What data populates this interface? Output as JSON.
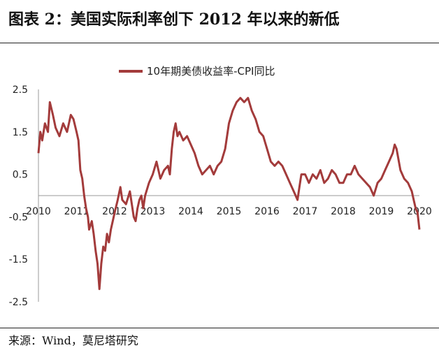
{
  "figure": {
    "title": "图表 2：美国实际利率创下 2012 年以来的新低",
    "source": "来源：Wind，莫尼塔研究"
  },
  "chart_data": {
    "type": "line",
    "title": "",
    "xlabel": "",
    "ylabel": "",
    "xlim": [
      2010,
      2020
    ],
    "ylim": [
      -2.5,
      2.5
    ],
    "xticks": [
      "2010",
      "2011",
      "2012",
      "2013",
      "2014",
      "2015",
      "2016",
      "2017",
      "2018",
      "2019",
      "2020"
    ],
    "yticks": [
      "2.5",
      "1.5",
      "0.5",
      "-0.5",
      "-1.5",
      "-2.5"
    ],
    "ytick_values": [
      2.5,
      1.5,
      0.5,
      -0.5,
      -1.5,
      -2.5
    ],
    "grid": false,
    "legend_position": "top-center",
    "series": [
      {
        "name": "10年期美债收益率-CPI同比",
        "color": "#a33b3b",
        "x": [
          2010.0,
          2010.05,
          2010.1,
          2010.17,
          2010.25,
          2010.3,
          2010.38,
          2010.45,
          2010.55,
          2010.65,
          2010.75,
          2010.85,
          2010.92,
          2011.0,
          2011.05,
          2011.1,
          2011.15,
          2011.2,
          2011.25,
          2011.3,
          2011.33,
          2011.4,
          2011.45,
          2011.5,
          2011.55,
          2011.6,
          2011.65,
          2011.7,
          2011.75,
          2011.8,
          2011.85,
          2011.9,
          2011.95,
          2012.0,
          2012.08,
          2012.15,
          2012.2,
          2012.3,
          2012.4,
          2012.5,
          2012.55,
          2012.6,
          2012.65,
          2012.7,
          2012.75,
          2012.8,
          2012.9,
          2013.0,
          2013.1,
          2013.2,
          2013.3,
          2013.4,
          2013.45,
          2013.5,
          2013.55,
          2013.6,
          2013.65,
          2013.7,
          2013.8,
          2013.9,
          2014.0,
          2014.1,
          2014.2,
          2014.3,
          2014.4,
          2014.5,
          2014.6,
          2014.7,
          2014.8,
          2014.9,
          2015.0,
          2015.1,
          2015.2,
          2015.3,
          2015.4,
          2015.5,
          2015.6,
          2015.7,
          2015.8,
          2015.9,
          2016.0,
          2016.1,
          2016.2,
          2016.3,
          2016.4,
          2016.5,
          2016.6,
          2016.7,
          2016.75,
          2016.8,
          2016.85,
          2016.9,
          2017.0,
          2017.1,
          2017.2,
          2017.3,
          2017.4,
          2017.5,
          2017.6,
          2017.7,
          2017.8,
          2017.9,
          2018.0,
          2018.1,
          2018.2,
          2018.3,
          2018.4,
          2018.5,
          2018.6,
          2018.7,
          2018.8,
          2018.9,
          2019.0,
          2019.1,
          2019.2,
          2019.3,
          2019.35,
          2019.4,
          2019.5,
          2019.6,
          2019.7,
          2019.8,
          2019.85,
          2019.9,
          2019.95,
          2020.0
        ],
        "y": [
          1.0,
          1.5,
          1.3,
          1.7,
          1.5,
          2.2,
          1.9,
          1.6,
          1.4,
          1.7,
          1.5,
          1.9,
          1.8,
          1.5,
          1.3,
          0.6,
          0.4,
          0.0,
          -0.3,
          -0.5,
          -0.8,
          -0.6,
          -0.9,
          -1.3,
          -1.6,
          -2.2,
          -1.6,
          -1.2,
          -1.3,
          -0.9,
          -1.1,
          -0.8,
          -0.6,
          -0.4,
          -0.1,
          0.2,
          -0.1,
          -0.2,
          0.1,
          -0.5,
          -0.6,
          -0.3,
          -0.1,
          0.0,
          -0.3,
          0.0,
          0.3,
          0.5,
          0.8,
          0.4,
          0.6,
          0.7,
          0.5,
          1.1,
          1.5,
          1.7,
          1.4,
          1.5,
          1.3,
          1.4,
          1.2,
          1.0,
          0.7,
          0.5,
          0.6,
          0.7,
          0.5,
          0.7,
          0.8,
          1.1,
          1.7,
          2.0,
          2.2,
          2.3,
          2.2,
          2.3,
          2.0,
          1.8,
          1.5,
          1.4,
          1.1,
          0.8,
          0.7,
          0.8,
          0.7,
          0.5,
          0.3,
          0.1,
          0.0,
          -0.1,
          0.2,
          0.5,
          0.5,
          0.3,
          0.5,
          0.4,
          0.6,
          0.3,
          0.4,
          0.6,
          0.5,
          0.3,
          0.3,
          0.5,
          0.5,
          0.7,
          0.5,
          0.4,
          0.3,
          0.2,
          0.0,
          0.3,
          0.4,
          0.6,
          0.8,
          1.0,
          1.2,
          1.1,
          0.6,
          0.4,
          0.3,
          0.1,
          -0.1,
          -0.3,
          -0.4,
          -0.8
        ]
      }
    ]
  }
}
